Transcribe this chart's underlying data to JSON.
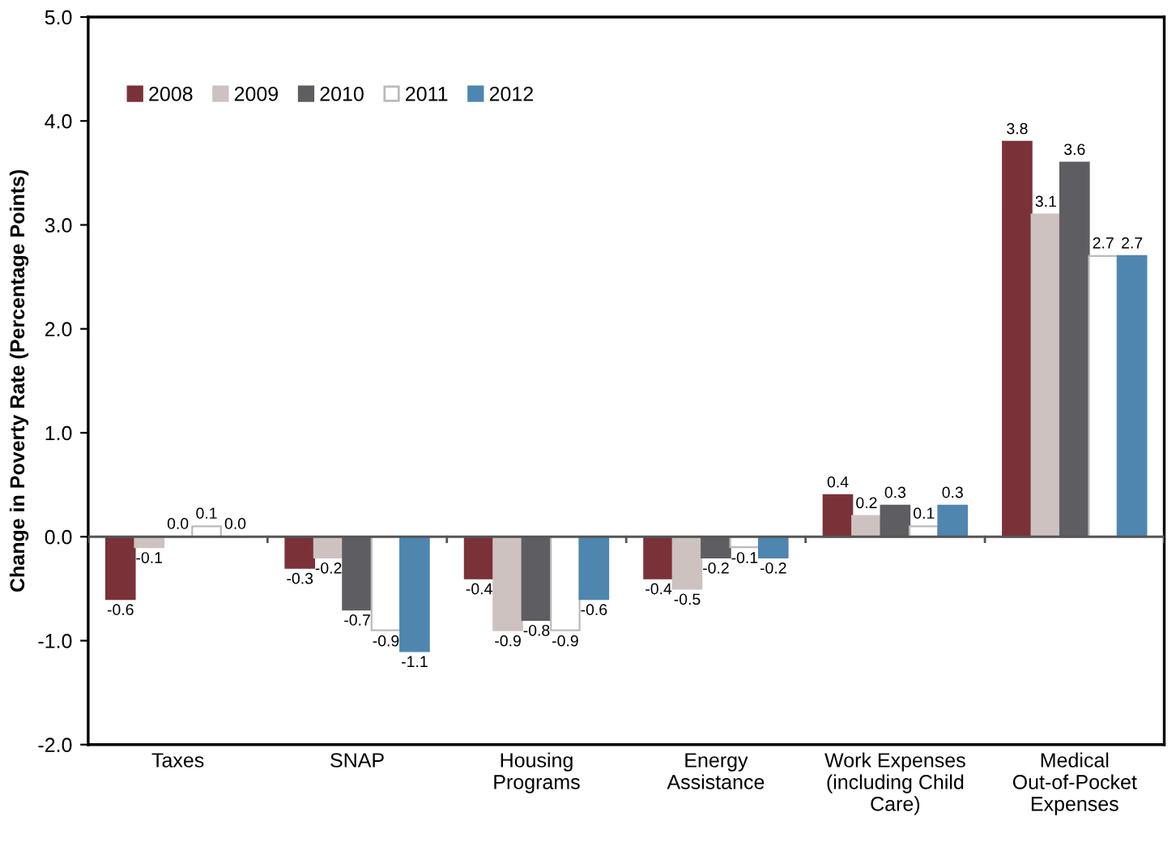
{
  "chart_data": {
    "type": "bar",
    "ylabel": "Change in Poverty Rate (Percentage Points)",
    "categories": [
      "Taxes",
      "SNAP",
      "Housing\nPrograms",
      "Energy\nAssistance",
      "Work Expenses\n(including Child\nCare)",
      "Medical\nOut-of-Pocket\nExpenses"
    ],
    "series": [
      {
        "name": "2008",
        "color": "#7a3238",
        "values": [
          -0.6,
          -0.3,
          -0.4,
          -0.4,
          0.4,
          3.8
        ],
        "value_labels": [
          "-0.6",
          "-0.3",
          "-0.4",
          "-0.4",
          "0.4",
          "3.8"
        ]
      },
      {
        "name": "2009",
        "color": "#cdc2c0",
        "values": [
          -0.1,
          -0.2,
          -0.9,
          -0.5,
          0.2,
          3.1
        ],
        "value_labels": [
          "-0.1",
          "-0.2",
          "-0.9",
          "-0.5",
          "0.2",
          "3.1"
        ]
      },
      {
        "name": "2010",
        "color": "#5e5e62",
        "values": [
          0.0,
          -0.7,
          -0.8,
          -0.2,
          0.3,
          3.6
        ],
        "value_labels": [
          "0.0",
          "-0.7",
          "-0.8",
          "-0.2",
          "0.3",
          "3.6"
        ]
      },
      {
        "name": "2011",
        "color": "#ffffff",
        "values": [
          0.1,
          -0.9,
          -0.9,
          -0.1,
          0.1,
          2.7
        ],
        "value_labels": [
          "0.1",
          "-0.9",
          "-0.9",
          "-0.1",
          "0.1",
          "2.7"
        ]
      },
      {
        "name": "2012",
        "color": "#4f86b0",
        "values": [
          0.0,
          -1.1,
          -0.6,
          -0.2,
          0.3,
          2.7
        ],
        "value_labels": [
          "0.0",
          "-1.1",
          "-0.6",
          "-0.2",
          "0.3",
          "2.7"
        ]
      }
    ],
    "ylim": [
      -2.0,
      5.0
    ],
    "yticks": [
      {
        "value": -2.0,
        "label": "-2.0"
      },
      {
        "value": -1.0,
        "label": "-1.0"
      },
      {
        "value": 0.0,
        "label": "0.0"
      },
      {
        "value": 1.0,
        "label": "1.0"
      },
      {
        "value": 2.0,
        "label": "2.0"
      },
      {
        "value": 3.0,
        "label": "3.0"
      },
      {
        "value": 4.0,
        "label": "4.0"
      },
      {
        "value": 5.0,
        "label": "5.0"
      }
    ],
    "ref_lines": [
      {
        "axis": "y",
        "value": 0.0,
        "color": "#555555"
      }
    ],
    "legend": "top left",
    "grid": false
  }
}
